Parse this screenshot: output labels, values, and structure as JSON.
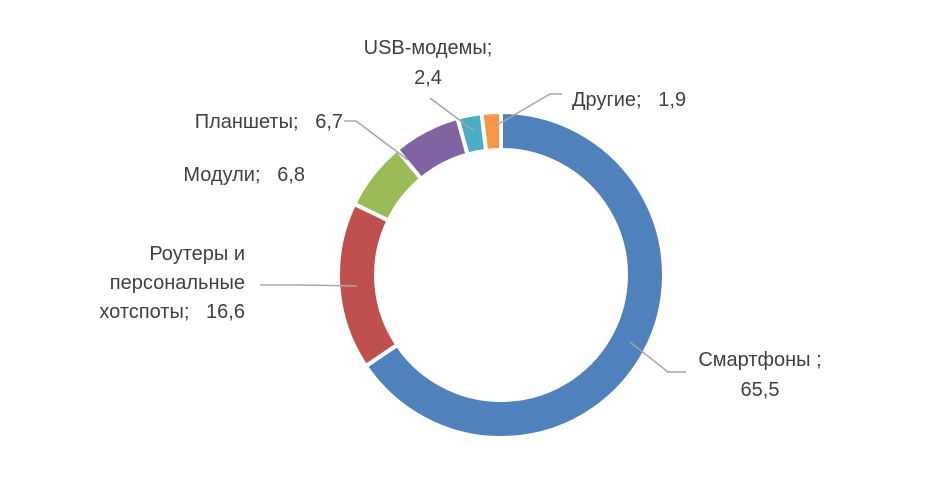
{
  "chart_data": {
    "type": "pie",
    "donut": true,
    "title": "",
    "start_angle_deg": 0,
    "direction": "clockwise",
    "slices": [
      {
        "label": "Смартфоны",
        "value": 65.5,
        "color": "#4f81bd",
        "label_lines": [
          "Смартфоны ;",
          "65,5"
        ]
      },
      {
        "label": "Роутеры и персональные хотспоты",
        "value": 16.6,
        "color": "#c0504d",
        "label_lines": [
          "Роутеры и",
          "персональные",
          "хотспоты;   16,6"
        ]
      },
      {
        "label": "Модули",
        "value": 6.8,
        "color": "#9bbb59",
        "label_lines": [
          "Модули;   6,8"
        ]
      },
      {
        "label": "Планшеты",
        "value": 6.7,
        "color": "#8064a2",
        "label_lines": [
          "Планшеты;   6,7"
        ]
      },
      {
        "label": "USB-модемы",
        "value": 2.4,
        "color": "#4bacc6",
        "label_lines": [
          "USB-модемы;",
          "2,4"
        ]
      },
      {
        "label": "Другие",
        "value": 1.9,
        "color": "#f79646",
        "label_lines": [
          "Другие;   1,9"
        ]
      }
    ],
    "leader_line_color": "#a6a6a6"
  }
}
